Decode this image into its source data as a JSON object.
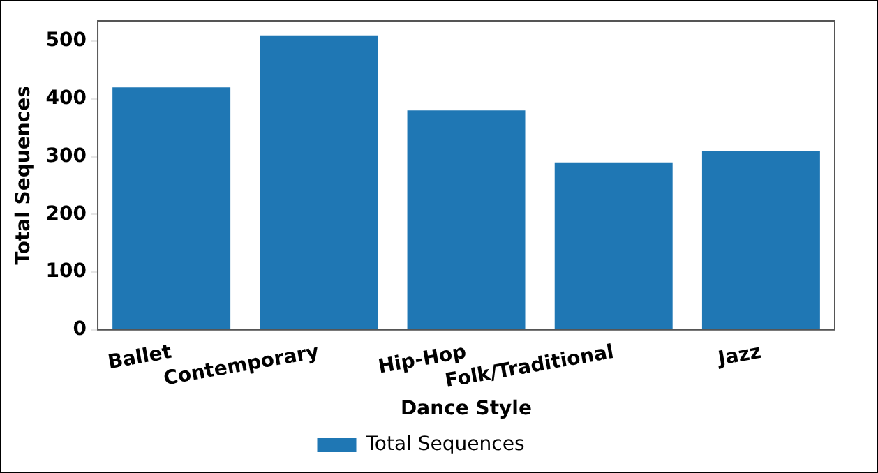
{
  "chart_data": {
    "type": "bar",
    "xlabel": "Dance Style",
    "ylabel": "Total Sequences",
    "categories": [
      "Ballet",
      "Contemporary",
      "Hip-Hop",
      "Folk/Traditional",
      "Jazz"
    ],
    "series": [
      {
        "name": "Total Sequences",
        "color": "#1f77b4",
        "values": [
          420,
          510,
          380,
          290,
          310
        ]
      }
    ],
    "ylim": [
      0,
      535
    ],
    "yticks": [
      0,
      100,
      200,
      300,
      400,
      500
    ],
    "grid": false,
    "legend": "bottom"
  }
}
